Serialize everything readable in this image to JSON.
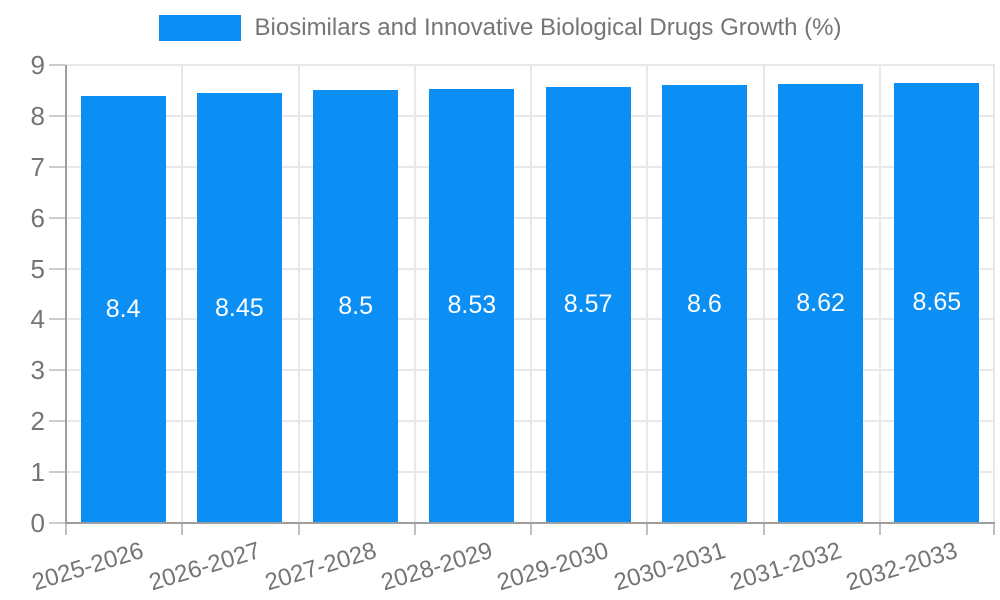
{
  "legend": {
    "label": "Biosimilars and Innovative Biological Drugs Growth (%)"
  },
  "chart_data": {
    "type": "bar",
    "title": "Biosimilars and Innovative Biological Drugs Growth (%)",
    "categories": [
      "2025-2026",
      "2026-2027",
      "2027-2028",
      "2028-2029",
      "2029-2030",
      "2030-2031",
      "2031-2032",
      "2032-2033"
    ],
    "values": [
      8.4,
      8.45,
      8.5,
      8.53,
      8.57,
      8.6,
      8.62,
      8.65
    ],
    "data_labels": [
      "8.4",
      "8.45",
      "8.5",
      "8.53",
      "8.57",
      "8.6",
      "8.62",
      "8.65"
    ],
    "xlabel": "",
    "ylabel": "",
    "ylim": [
      0,
      9
    ],
    "ytick_step": 1,
    "ytick_labels": [
      "0",
      "1",
      "2",
      "3",
      "4",
      "5",
      "6",
      "7",
      "8",
      "9"
    ],
    "grid": true,
    "legend_position": "top-center",
    "x_label_rotation_deg": -17,
    "series_color": "#0b8ff5",
    "value_label_color": "#ffffff",
    "axis_text_color": "#757575",
    "axis_line_color": "#9e9e9e",
    "gridline_color": "#e8e8e8"
  }
}
